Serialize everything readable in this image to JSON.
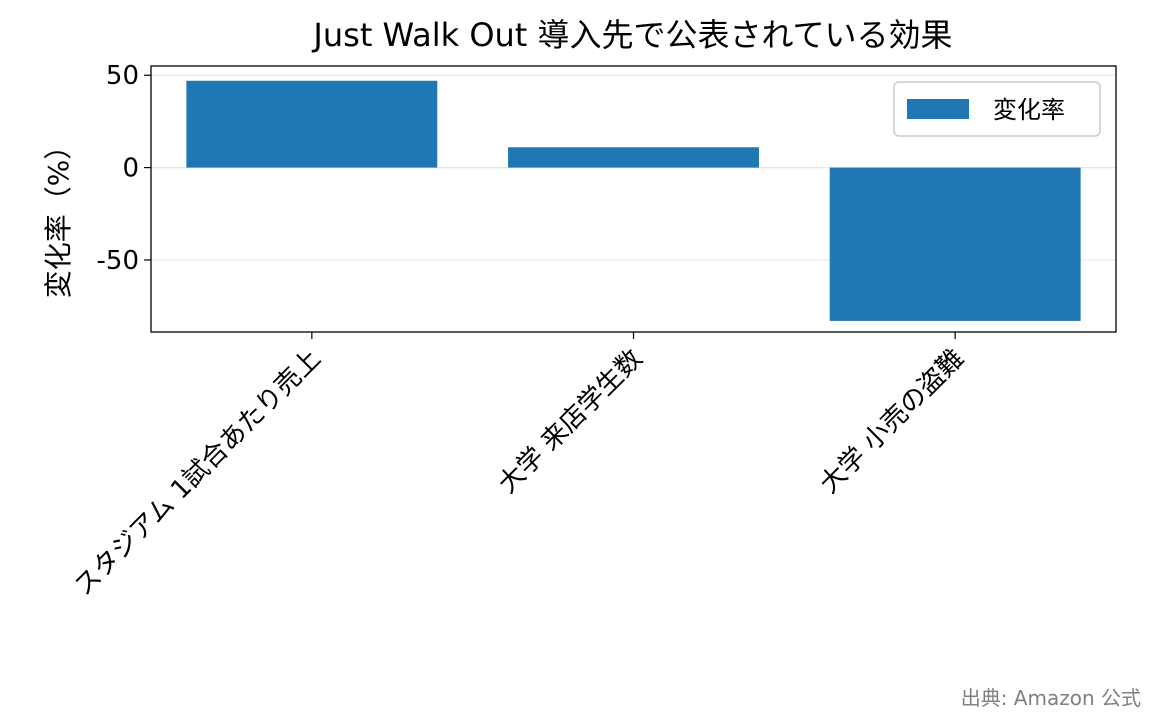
{
  "chart_data": {
    "type": "bar",
    "title": "Just Walk Out 導入先で公表されている効果",
    "xlabel": "",
    "ylabel": "変化率（%）",
    "categories": [
      "スタジアム 1試合あたり売上",
      "大学 来店学生数",
      "大学 小売の盗難"
    ],
    "series": [
      {
        "name": "変化率",
        "values": [
          47,
          11,
          -83
        ]
      }
    ],
    "ylim": [
      -89,
      55
    ],
    "yticks": [
      50,
      0,
      -50
    ],
    "ytick_labels": [
      "50",
      "0",
      "-50"
    ],
    "grid": "horizontal",
    "legend_position": "top-right",
    "bar_color": "#1f77b4"
  },
  "source_note": "出典: Amazon 公式"
}
